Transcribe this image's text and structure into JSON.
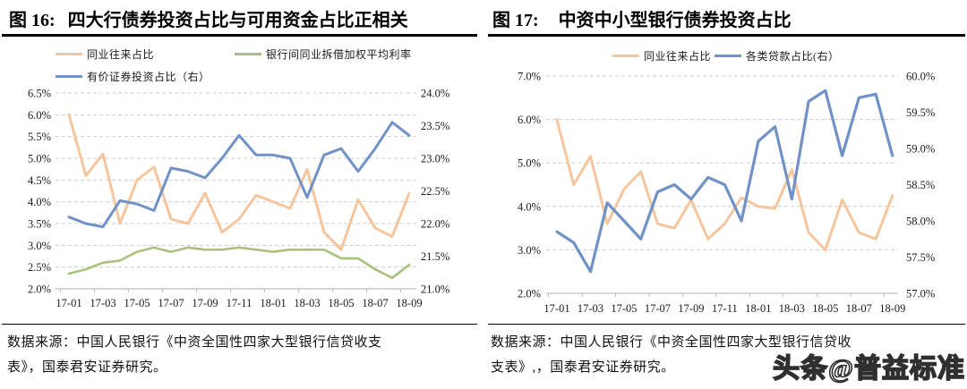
{
  "watermark": {
    "text": "头条@普益标准"
  },
  "colors": {
    "orange": "#F5C69E",
    "green": "#A9C17D",
    "blue": "#7092C6",
    "grid": "#CDCDCD",
    "axis_line": "#BDBDBD",
    "title": "#000000"
  },
  "charts": [
    {
      "title_prefix": "图 16:",
      "title_text": "四大行债券投资占比与可用资金占比正相关",
      "legend": [
        {
          "label": "同业往来占比",
          "color": "#F5C69E"
        },
        {
          "label": "银行间同业拆借加权平均利率",
          "color": "#A9C17D"
        },
        {
          "label": "有价证券投资占比（右）",
          "color": "#7092C6"
        }
      ],
      "source_lines": [
        "数据来源：中国人民银行《中资全国性四家大型银行信贷收支",
        "表》，国泰君安证券研究。"
      ],
      "chart_data": {
        "type": "line",
        "x": [
          "17-01",
          "17-02",
          "17-03",
          "17-04",
          "17-05",
          "17-06",
          "17-07",
          "17-08",
          "17-09",
          "17-10",
          "17-11",
          "17-12",
          "18-01",
          "18-02",
          "18-03",
          "18-04",
          "18-05",
          "18-06",
          "18-07",
          "18-08",
          "18-09"
        ],
        "x_tick_labels": [
          "17-01",
          "17-03",
          "17-05",
          "17-07",
          "17-09",
          "17-11",
          "18-01",
          "18-03",
          "18-05",
          "18-07",
          "18-09"
        ],
        "left_axis": {
          "min": 2.0,
          "max": 6.5,
          "tick_labels": [
            "6.5%",
            "6.0%",
            "5.5%",
            "5.0%",
            "4.5%",
            "4.0%",
            "3.5%",
            "3.0%",
            "2.5%",
            "2.0%"
          ]
        },
        "right_axis": {
          "min": 21.0,
          "max": 24.0,
          "tick_labels": [
            "24.0%",
            "23.5%",
            "23.0%",
            "22.5%",
            "22.0%",
            "21.5%",
            "21.0%"
          ]
        },
        "grid": true,
        "legend_position": "top",
        "series": [
          {
            "name": "同业往来占比",
            "axis": "left",
            "color": "#F5C69E",
            "width": 3,
            "values": [
              6.0,
              4.6,
              5.1,
              3.5,
              4.5,
              4.8,
              3.6,
              3.5,
              4.2,
              3.3,
              3.6,
              4.15,
              4.0,
              3.85,
              4.75,
              3.3,
              2.9,
              4.05,
              3.4,
              3.2,
              4.2
            ]
          },
          {
            "name": "银行间同业拆借加权平均利率",
            "axis": "left",
            "color": "#A9C17D",
            "width": 2.6,
            "values": [
              2.35,
              2.45,
              2.6,
              2.65,
              2.85,
              2.95,
              2.85,
              2.95,
              2.9,
              2.9,
              2.95,
              2.9,
              2.85,
              2.9,
              2.9,
              2.9,
              2.7,
              2.7,
              2.45,
              2.25,
              2.55
            ]
          },
          {
            "name": "有价证券投资占比（右）",
            "axis": "right",
            "color": "#7092C6",
            "width": 3,
            "values": [
              22.1,
              22.0,
              21.95,
              22.35,
              22.3,
              22.2,
              22.85,
              22.8,
              22.7,
              23.0,
              23.35,
              23.05,
              23.05,
              23.0,
              22.4,
              23.05,
              23.15,
              22.8,
              23.15,
              23.55,
              23.35
            ]
          }
        ]
      }
    },
    {
      "title_prefix": "图 17:",
      "title_text": "中资中小型银行债券投资占比",
      "legend": [
        {
          "label": "同业往来占比",
          "color": "#F5C69E"
        },
        {
          "label": "各类贷款占比(右）",
          "color": "#7092C6"
        }
      ],
      "source_lines": [
        "数据来源：中国人民银行《中资全国性四家大型银行信贷收",
        "支表》,，国泰君安证券研究。"
      ],
      "chart_data": {
        "type": "line",
        "x": [
          "17-01",
          "17-02",
          "17-03",
          "17-04",
          "17-05",
          "17-06",
          "17-07",
          "17-08",
          "17-09",
          "17-10",
          "17-11",
          "17-12",
          "18-01",
          "18-02",
          "18-03",
          "18-04",
          "18-05",
          "18-06",
          "18-07",
          "18-08",
          "18-09"
        ],
        "x_tick_labels": [
          "17-01",
          "17-03",
          "17-05",
          "17-07",
          "17-09",
          "17-11",
          "18-01",
          "18-03",
          "18-05",
          "18-07",
          "18-09"
        ],
        "left_axis": {
          "min": 2.0,
          "max": 7.0,
          "tick_labels": [
            "7.0%",
            "6.0%",
            "5.0%",
            "4.0%",
            "3.0%",
            "2.0%"
          ]
        },
        "right_axis": {
          "min": 57.0,
          "max": 60.0,
          "tick_labels": [
            "60.0%",
            "59.5%",
            "59.0%",
            "58.5%",
            "58.0%",
            "57.5%",
            "57.0%"
          ]
        },
        "grid": true,
        "legend_position": "top",
        "series": [
          {
            "name": "同业往来占比",
            "axis": "left",
            "color": "#F5C69E",
            "width": 3,
            "values": [
              6.0,
              4.5,
              5.15,
              3.6,
              4.4,
              4.8,
              3.6,
              3.5,
              4.15,
              3.25,
              3.6,
              4.2,
              4.0,
              3.95,
              4.85,
              3.4,
              3.0,
              4.15,
              3.4,
              3.25,
              4.25
            ]
          },
          {
            "name": "各类贷款占比(右）",
            "axis": "right",
            "color": "#7092C6",
            "width": 3.2,
            "values": [
              57.85,
              57.7,
              57.3,
              58.25,
              58.0,
              57.75,
              58.4,
              58.5,
              58.3,
              58.6,
              58.5,
              58.0,
              59.1,
              59.3,
              58.3,
              59.65,
              59.8,
              58.9,
              59.7,
              59.75,
              58.9
            ]
          }
        ]
      }
    }
  ]
}
